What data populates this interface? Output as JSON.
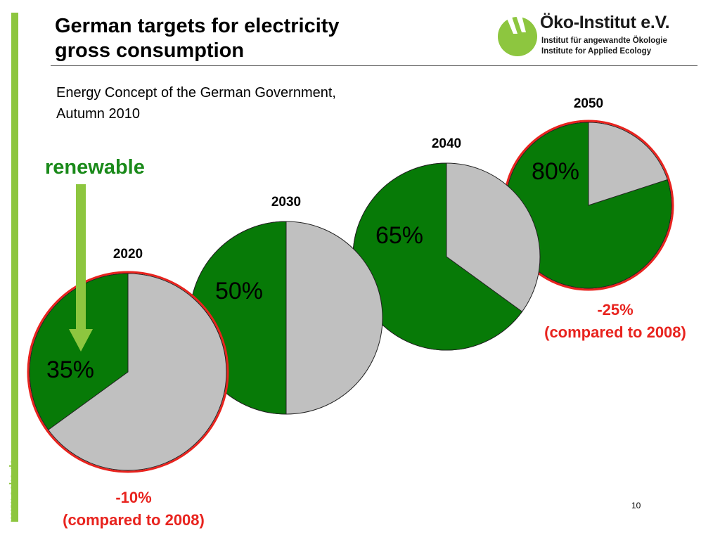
{
  "slide": {
    "title_line1": "German targets for electricity",
    "title_line2": "gross consumption",
    "subtitle_line1": "Energy Concept of the German Government,",
    "subtitle_line2": "Autumn 2010",
    "renewable_label": "renewable",
    "page_number": "10",
    "side_url": "www.oeko.de"
  },
  "logo": {
    "name": "Öko-Institut e.V.",
    "line1": "Institut für angewandte Ökologie",
    "line2": "Institute for Applied Ecology"
  },
  "annotations": {
    "reduction_2050_pct": "-25%",
    "reduction_2050_note": "(compared to 2008)",
    "reduction_2020_pct": "-10%",
    "reduction_2020_note": "(compared to 2008)"
  },
  "colors": {
    "renewable": "#077a07",
    "other": "#c0c0c0",
    "highlight": "#e8231e",
    "brand_green": "#8dc63f",
    "renewable_text": "#1a8a1a"
  },
  "chart_data": {
    "type": "pie",
    "title": "German targets for electricity gross consumption",
    "charts": [
      {
        "year": "2020",
        "renewable_pct": 35,
        "label": "35%",
        "highlighted": true
      },
      {
        "year": "2030",
        "renewable_pct": 50,
        "label": "50%",
        "highlighted": false
      },
      {
        "year": "2040",
        "renewable_pct": 65,
        "label": "65%",
        "highlighted": false
      },
      {
        "year": "2050",
        "renewable_pct": 80,
        "label": "80%",
        "highlighted": true
      }
    ]
  }
}
